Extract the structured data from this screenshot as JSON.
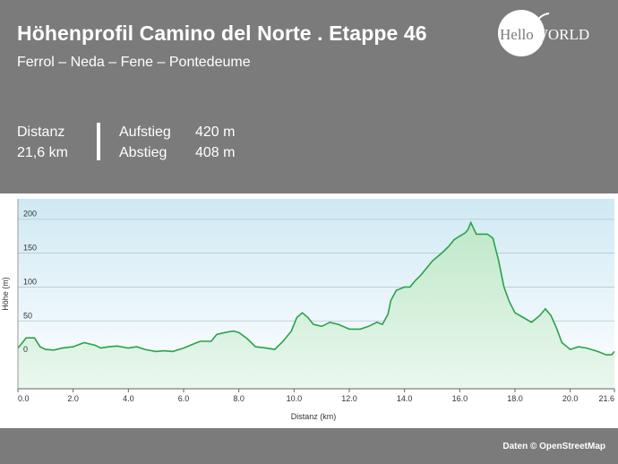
{
  "header": {
    "title": "Höhenprofil Camino del Norte . Etappe 46",
    "subtitle": "Ferrol – Neda – Fene – Pontedeume",
    "logo_hello": "Hello",
    "logo_world": "WORLD"
  },
  "stats": {
    "distance_label": "Distanz",
    "distance_value": "21,6 km",
    "ascent_label": "Aufstieg",
    "ascent_value": "420 m",
    "descent_label": "Abstieg",
    "descent_value": "408 m"
  },
  "footer": {
    "credit": "Daten © OpenStreetMap"
  },
  "colors": {
    "line": "#2aa24a",
    "fill_top": "#bfe8c9",
    "fill_bottom": "#eaf7ee",
    "bg_top": "#cfe9f4",
    "bg_bottom": "#ffffff"
  },
  "chart_data": {
    "type": "area",
    "xlabel": "Distanz  (km)",
    "ylabel": "Höhe (m)",
    "xlim": [
      0,
      21.6
    ],
    "ylim": [
      -50,
      230
    ],
    "x_ticks": [
      "0.0",
      "2.0",
      "4.0",
      "6.0",
      "8.0",
      "10.0",
      "12.0",
      "14.0",
      "16.0",
      "18.0",
      "20.0",
      "21.6"
    ],
    "x_tick_values": [
      0,
      2,
      4,
      6,
      8,
      10,
      12,
      14,
      16,
      18,
      20,
      21.6
    ],
    "y_ticks": [
      "0",
      "50",
      "100",
      "150",
      "200"
    ],
    "y_tick_values": [
      0,
      50,
      100,
      150,
      200
    ],
    "grid": true,
    "series": [
      {
        "x": [
          0,
          0.3,
          0.6,
          0.8,
          1.0,
          1.3,
          1.6,
          2.0,
          2.4,
          2.8,
          3.0,
          3.3,
          3.6,
          4.0,
          4.3,
          4.6,
          5.0,
          5.3,
          5.6,
          6.0,
          6.3,
          6.6,
          7.0,
          7.2,
          7.5,
          7.8,
          8.0,
          8.3,
          8.6,
          9.0,
          9.3,
          9.6,
          9.9,
          10.1,
          10.3,
          10.5,
          10.7,
          11.0,
          11.3,
          11.6,
          12.0,
          12.4,
          12.7,
          13.0,
          13.2,
          13.4,
          13.5,
          13.7,
          14.0,
          14.2,
          14.4,
          14.6,
          14.8,
          15.0,
          15.2,
          15.4,
          15.6,
          15.8,
          16.0,
          16.2,
          16.3,
          16.4,
          16.6,
          16.8,
          17.0,
          17.2,
          17.4,
          17.6,
          17.8,
          18.0,
          18.3,
          18.6,
          18.9,
          19.1,
          19.3,
          19.5,
          19.7,
          20.0,
          20.3,
          20.6,
          21.0,
          21.3,
          21.5,
          21.6
        ],
        "y": [
          10,
          25,
          25,
          12,
          8,
          7,
          10,
          12,
          18,
          14,
          10,
          12,
          13,
          10,
          12,
          8,
          5,
          6,
          5,
          10,
          15,
          20,
          20,
          30,
          33,
          35,
          33,
          24,
          12,
          10,
          8,
          20,
          35,
          55,
          62,
          55,
          45,
          42,
          48,
          45,
          38,
          38,
          42,
          48,
          45,
          60,
          80,
          95,
          100,
          100,
          110,
          118,
          128,
          138,
          145,
          152,
          160,
          170,
          175,
          180,
          185,
          195,
          178,
          178,
          178,
          172,
          140,
          100,
          78,
          62,
          55,
          48,
          58,
          68,
          58,
          40,
          18,
          8,
          12,
          10,
          5,
          0,
          0,
          5
        ]
      }
    ]
  }
}
